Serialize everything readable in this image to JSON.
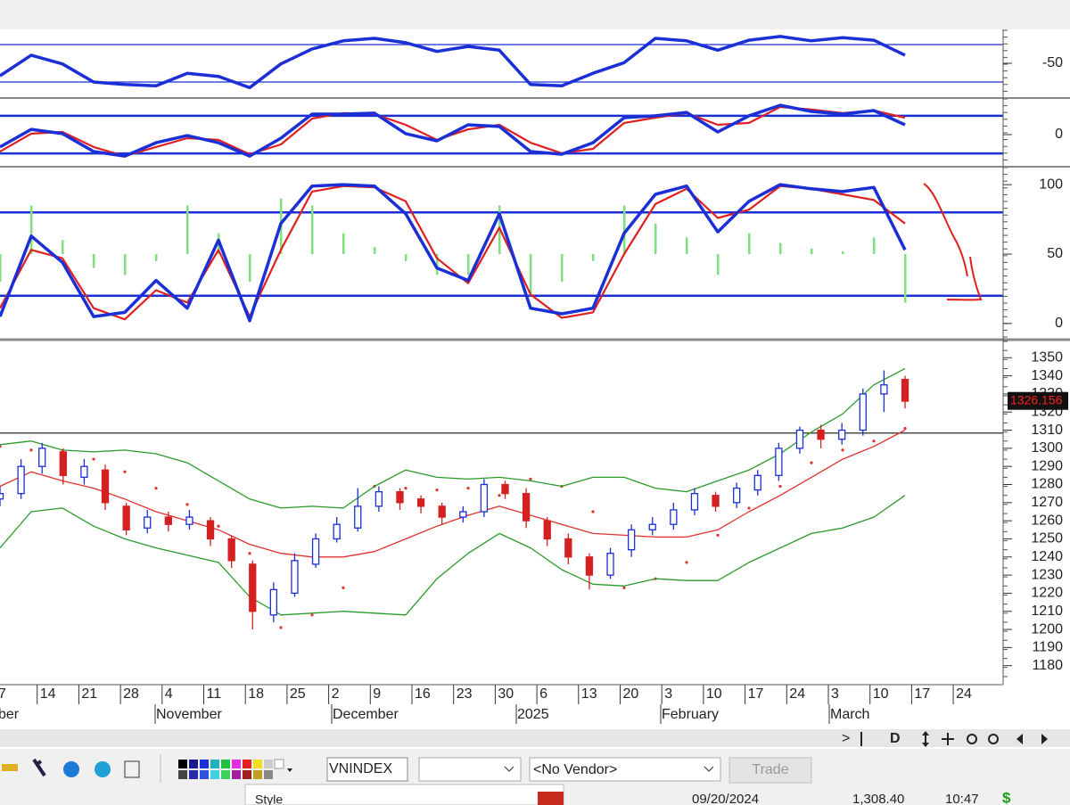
{
  "chart_data": [
    {
      "type": "line",
      "ylim": [
        -100,
        0
      ],
      "yticks": [
        -50
      ],
      "levels": [
        -20,
        -80
      ],
      "series": [
        {
          "color": "#1a2fd6",
          "values": [
            -70,
            -37,
            -51,
            -80,
            -84,
            -86,
            -66,
            -71,
            -89,
            -51,
            -27,
            -14,
            -10,
            -17,
            -31,
            -23,
            -29,
            -84,
            -86,
            -66,
            -49,
            -10,
            -14,
            -29,
            -13,
            -7,
            -14,
            -9,
            -13,
            -37
          ]
        }
      ]
    },
    {
      "type": "line",
      "ylim": [
        -180,
        180
      ],
      "yticks": [
        0
      ],
      "levels": [
        100,
        -100
      ],
      "series": [
        {
          "color": "#e02020",
          "values": [
            -90,
            5,
            14,
            -66,
            -114,
            -66,
            -19,
            -28,
            -104,
            -52,
            85,
            114,
            109,
            52,
            -28,
            28,
            52,
            -43,
            -99,
            -76,
            62,
            90,
            114,
            52,
            62,
            147,
            133,
            114,
            128,
            90
          ]
        },
        {
          "color": "#1a2fd6",
          "values": [
            -66,
            28,
            5,
            -90,
            -114,
            -43,
            -5,
            -43,
            -114,
            -19,
            109,
            109,
            114,
            5,
            -33,
            52,
            43,
            -90,
            -104,
            -43,
            90,
            100,
            118,
            14,
            100,
            156,
            123,
            109,
            128,
            52
          ]
        }
      ]
    },
    {
      "type": "line",
      "ylim": [
        -11,
        111
      ],
      "yticks": [
        100,
        50,
        0
      ],
      "levels": [
        80,
        20
      ],
      "histogram": {
        "color": "#7ee07e",
        "base": 50,
        "values": [
          30,
          85,
          60,
          40,
          35,
          45,
          85,
          65,
          30,
          90,
          85,
          65,
          55,
          45,
          35,
          35,
          85,
          20,
          30,
          45,
          85,
          72,
          62,
          35,
          65,
          58,
          54,
          52,
          62,
          15
        ]
      },
      "series": [
        {
          "color": "#e02020",
          "values": [
            11,
            53,
            47,
            11,
            3,
            24,
            15,
            53,
            5,
            53,
            95,
            99,
            98,
            88,
            47,
            29,
            69,
            21,
            4,
            8,
            50,
            86,
            97,
            76,
            82,
            99,
            97,
            93,
            89,
            72
          ]
        },
        {
          "color": "#1a2fd6",
          "values": [
            5,
            63,
            44,
            5,
            8,
            31,
            11,
            60,
            2,
            72,
            99,
            100,
            99,
            79,
            40,
            31,
            79,
            11,
            7,
            11,
            65,
            93,
            99,
            66,
            88,
            100,
            97,
            95,
            98,
            53
          ]
        }
      ]
    },
    {
      "type": "candlestick",
      "ylim": [
        1171,
        1358
      ],
      "yticks": [
        1350,
        1340,
        1330,
        1320,
        1310,
        1300,
        1290,
        1280,
        1270,
        1260,
        1250,
        1240,
        1230,
        1220,
        1210,
        1200,
        1190,
        1180
      ],
      "ref_line": 1308.4,
      "last_price": 1326.156,
      "open": [
        1272,
        1275,
        1290,
        1298,
        1284,
        1288,
        1268,
        1256,
        1262,
        1258,
        1260,
        1250,
        1236,
        1208,
        1220,
        1236,
        1250,
        1256,
        1268,
        1276,
        1272,
        1268,
        1262,
        1265,
        1280,
        1275,
        1260,
        1250,
        1240,
        1230,
        1244,
        1255,
        1258,
        1266,
        1274,
        1270,
        1277,
        1285,
        1300,
        1310,
        1305,
        1310,
        1330,
        1338
      ],
      "high": [
        1279,
        1294,
        1303,
        1300,
        1294,
        1291,
        1270,
        1266,
        1265,
        1266,
        1262,
        1252,
        1238,
        1226,
        1242,
        1253,
        1262,
        1278,
        1279,
        1278,
        1274,
        1270,
        1268,
        1283,
        1282,
        1278,
        1262,
        1253,
        1242,
        1245,
        1258,
        1262,
        1270,
        1278,
        1276,
        1281,
        1288,
        1303,
        1312,
        1313,
        1314,
        1333,
        1343,
        1340
      ],
      "low": [
        1268,
        1272,
        1286,
        1280,
        1280,
        1266,
        1252,
        1253,
        1254,
        1255,
        1246,
        1234,
        1200,
        1204,
        1218,
        1234,
        1248,
        1254,
        1265,
        1266,
        1264,
        1258,
        1259,
        1262,
        1272,
        1256,
        1246,
        1236,
        1222,
        1228,
        1240,
        1252,
        1255,
        1263,
        1265,
        1267,
        1274,
        1282,
        1297,
        1300,
        1302,
        1307,
        1320,
        1322
      ],
      "close": [
        1275,
        1290,
        1300,
        1285,
        1290,
        1270,
        1255,
        1262,
        1258,
        1262,
        1250,
        1238,
        1210,
        1222,
        1238,
        1250,
        1258,
        1268,
        1276,
        1270,
        1268,
        1262,
        1265,
        1280,
        1275,
        1260,
        1250,
        1240,
        1230,
        1242,
        1255,
        1258,
        1266,
        1275,
        1268,
        1278,
        1285,
        1300,
        1310,
        1305,
        1310,
        1330,
        1335,
        1326
      ],
      "series": [
        {
          "color": "#2a9a2a",
          "values": [
            1302,
            1304,
            1299,
            1298,
            1299,
            1297,
            1292,
            1282,
            1272,
            1267,
            1268,
            1267,
            1279,
            1288,
            1284,
            1283,
            1284,
            1282,
            1279,
            1284,
            1284,
            1278,
            1276,
            1282,
            1288,
            1297,
            1309,
            1319,
            1335,
            1344
          ]
        },
        {
          "color": "#2a9a2a",
          "values": [
            1245,
            1265,
            1267,
            1257,
            1250,
            1245,
            1241,
            1237,
            1218,
            1208,
            1209,
            1210,
            1209,
            1208,
            1228,
            1242,
            1253,
            1245,
            1233,
            1225,
            1224,
            1228,
            1227,
            1227,
            1237,
            1245,
            1253,
            1256,
            1262,
            1274
          ]
        },
        {
          "color": "#e03030",
          "values": [
            1279,
            1287,
            1282,
            1278,
            1272,
            1265,
            1260,
            1255,
            1247,
            1242,
            1240,
            1240,
            1243,
            1250,
            1257,
            1263,
            1268,
            1263,
            1258,
            1253,
            1252,
            1251,
            1251,
            1255,
            1265,
            1274,
            1284,
            1294,
            1301,
            1310
          ]
        }
      ],
      "sar": {
        "color": "#e03030",
        "values": [
          1301,
          1299,
          1298,
          1294,
          1287,
          1278,
          1269,
          1257,
          1242,
          1201,
          1208,
          1223,
          1279,
          1278,
          1277,
          1278,
          1274,
          1283,
          1279,
          1265,
          1223,
          1228,
          1237,
          1252,
          1267,
          1279,
          1292,
          1299,
          1304,
          1311
        ]
      },
      "date_labels": [
        "7",
        "14",
        "21",
        "28",
        "4",
        "11",
        "18",
        "25",
        "2",
        "9",
        "16",
        "23",
        "30",
        "6",
        "13",
        "20",
        "3",
        "10",
        "17",
        "24",
        "3",
        "10",
        "17",
        "24"
      ],
      "month_labels": [
        "ber",
        "November",
        "December",
        "2025",
        "February",
        "March"
      ]
    }
  ],
  "toolbar": {
    "symbol": "VNINDEX",
    "vendor": "<No Vendor>",
    "trade": "Trade",
    "scroll": [
      ">",
      "D"
    ]
  },
  "status": {
    "dialog": "Style",
    "date": "09/20/2024",
    "price": "1,308.40",
    "time": "10:47",
    "currency": "$"
  }
}
